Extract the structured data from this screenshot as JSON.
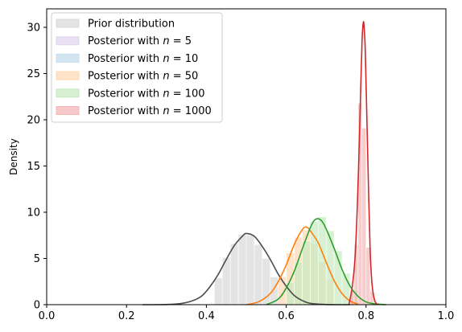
{
  "chart_data": {
    "type": "area",
    "title": "",
    "xlabel": "",
    "ylabel": "Density",
    "xlim": [
      0,
      1
    ],
    "ylim": [
      0,
      32
    ],
    "xticks": [
      "0.0",
      "0.2",
      "0.4",
      "0.6",
      "0.8",
      "1.0"
    ],
    "yticks": [
      "0",
      "5",
      "10",
      "15",
      "20",
      "25",
      "30"
    ],
    "grid": false,
    "legend_position": "top-left",
    "series": [
      {
        "name": "Prior distribution",
        "color": "#4d4d4d",
        "fill": "#d9d9d9",
        "x": [
          0.24,
          0.3,
          0.34,
          0.37,
          0.39,
          0.41,
          0.43,
          0.45,
          0.47,
          0.49,
          0.5,
          0.52,
          0.54,
          0.56,
          0.58,
          0.6,
          0.62,
          0.64,
          0.66,
          0.7,
          0.76
        ],
        "density": [
          0.0,
          0.02,
          0.15,
          0.5,
          1.0,
          2.0,
          3.3,
          4.9,
          6.4,
          7.4,
          7.7,
          7.4,
          6.3,
          4.9,
          3.3,
          2.0,
          1.0,
          0.45,
          0.15,
          0.02,
          0.0
        ],
        "histogram": {
          "bin_edges": [
            0.42,
            0.44,
            0.46,
            0.48,
            0.5,
            0.52,
            0.54,
            0.56,
            0.58
          ],
          "heights": [
            2.9,
            5.1,
            6.6,
            7.6,
            7.5,
            6.5,
            5.0,
            3.0
          ]
        }
      },
      {
        "name": "Posterior with n = 5",
        "legend_label": "Posterior with ",
        "legend_n": "n = 5",
        "color": "#9467bd",
        "fill": "#e2d6ef",
        "x": [],
        "density": []
      },
      {
        "name": "Posterior with n = 10",
        "legend_label": "Posterior with ",
        "legend_n": "n = 10",
        "color": "#1f77b4",
        "fill": "#c6dcee",
        "x": [],
        "density": []
      },
      {
        "name": "Posterior with n = 50",
        "legend_label": "Posterior with ",
        "legend_n": "n = 50",
        "color": "#ff7f0e",
        "fill": "#ffd9b5",
        "x": [
          0.5,
          0.53,
          0.56,
          0.58,
          0.6,
          0.62,
          0.64,
          0.65,
          0.66,
          0.68,
          0.7,
          0.72,
          0.74,
          0.76,
          0.78
        ],
        "density": [
          0.0,
          0.3,
          1.2,
          2.5,
          4.3,
          6.5,
          8.1,
          8.4,
          8.0,
          6.7,
          4.6,
          2.6,
          1.2,
          0.4,
          0.05
        ],
        "histogram": {
          "bin_edges": [
            0.58,
            0.6,
            0.62,
            0.64,
            0.66,
            0.68,
            0.7,
            0.72
          ],
          "heights": [
            3.0,
            5.6,
            7.3,
            8.1,
            6.6,
            4.6,
            2.7
          ]
        }
      },
      {
        "name": "Posterior with n = 100",
        "legend_label": "Posterior with ",
        "legend_n": "n = 100",
        "color": "#2ca02c",
        "fill": "#c7e9c0",
        "x": [
          0.55,
          0.58,
          0.6,
          0.62,
          0.64,
          0.66,
          0.67,
          0.68,
          0.69,
          0.7,
          0.72,
          0.74,
          0.76,
          0.78,
          0.8,
          0.82,
          0.85
        ],
        "density": [
          0.0,
          0.6,
          1.8,
          3.6,
          6.0,
          8.3,
          9.1,
          9.3,
          9.0,
          8.2,
          6.1,
          3.8,
          2.0,
          0.9,
          0.3,
          0.1,
          0.0
        ],
        "histogram": {
          "bin_edges": [
            0.6,
            0.62,
            0.64,
            0.66,
            0.68,
            0.7,
            0.72,
            0.74,
            0.76,
            0.78
          ],
          "heights": [
            2.4,
            4.6,
            6.9,
            9.0,
            9.5,
            8.0,
            5.8,
            3.4,
            1.5
          ]
        }
      },
      {
        "name": "Posterior with n = 1000",
        "legend_label": "Posterior with ",
        "legend_n": "n = 1000",
        "color": "#d62728",
        "fill": "#f4b6b7",
        "x": [
          0.757,
          0.765,
          0.772,
          0.778,
          0.783,
          0.787,
          0.79,
          0.793,
          0.795,
          0.798,
          0.802,
          0.806,
          0.81,
          0.815,
          0.822,
          0.83
        ],
        "density": [
          0.0,
          1.8,
          4.8,
          10.5,
          17.5,
          24.0,
          28.6,
          30.5,
          30.1,
          27.5,
          20.2,
          12.8,
          6.2,
          2.2,
          0.4,
          0.0
        ],
        "histogram": {
          "bin_edges": [
            0.76,
            0.77,
            0.78,
            0.79,
            0.8,
            0.81,
            0.82
          ],
          "heights": [
            1.5,
            6.5,
            21.8,
            19.1,
            6.2,
            1.4
          ]
        }
      }
    ]
  }
}
